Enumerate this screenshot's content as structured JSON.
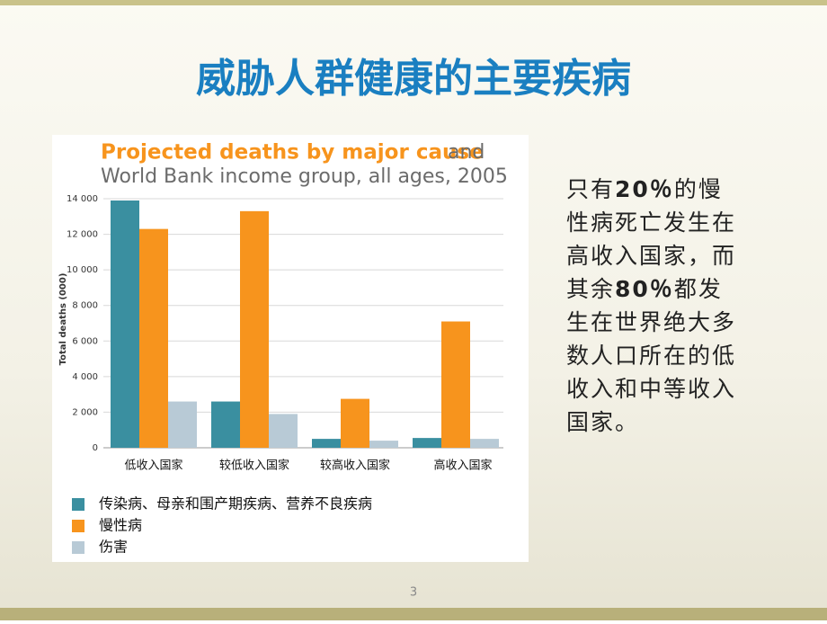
{
  "slide_title": "威胁人群健康的主要疾病",
  "side_text": [
    [
      "只有",
      "20％",
      "的慢"
    ],
    [
      "性病死亡发生在"
    ],
    [
      "高收入国家，而"
    ],
    [
      "其余",
      "80％",
      "都发"
    ],
    [
      "生在世界绝大多"
    ],
    [
      "数人口所在的低"
    ],
    [
      "收入和中等收入"
    ],
    [
      "国家。"
    ]
  ],
  "page_number": "3",
  "chart_data": {
    "type": "bar",
    "title": "Projected deaths by major cause",
    "subtitle": [
      "and",
      "World Bank income group, all ages, 2005"
    ],
    "ylabel": "Total deaths (000)",
    "categories": [
      "低收入国家",
      "较低收入国家",
      "较高收入国家",
      "高收入国家"
    ],
    "series": [
      {
        "name": "传染病、母亲和围产期疾病、营养不良疾病",
        "color": "#3a8fa0",
        "values": [
          13900,
          2600,
          500,
          550
        ]
      },
      {
        "name": "慢性病",
        "color": "#f7941d",
        "values": [
          12300,
          13300,
          2750,
          7100
        ]
      },
      {
        "name": "伤害",
        "color": "#b8cad6",
        "values": [
          2600,
          1900,
          400,
          500
        ]
      }
    ],
    "ylim": [
      0,
      14000
    ],
    "yticks": [
      0,
      {
        "value": 2000,
        "label": "2 000"
      },
      {
        "value": 4000,
        "label": "4 000"
      },
      {
        "value": 6000,
        "label": "6 000"
      },
      {
        "value": 8000,
        "label": "8 000"
      },
      {
        "value": 10000,
        "label": "10 000"
      },
      {
        "value": 12000,
        "label": "12 000"
      },
      {
        "value": 14000,
        "label": "14 000"
      }
    ],
    "grid": true
  }
}
